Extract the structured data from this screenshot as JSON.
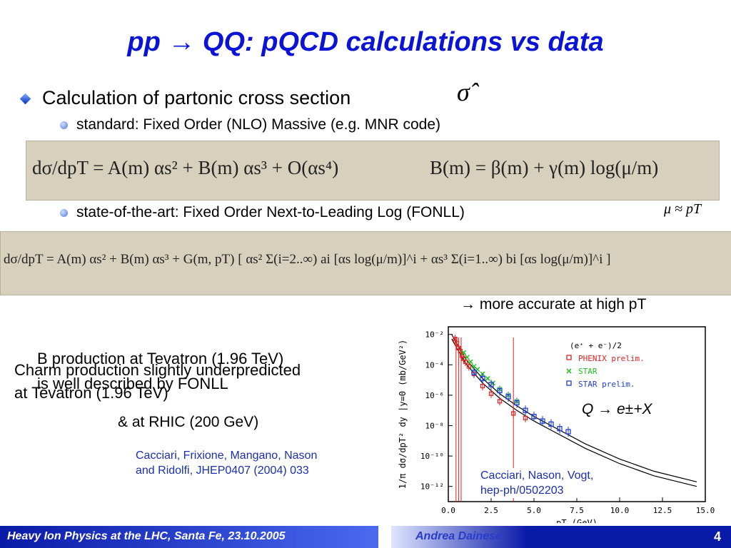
{
  "title": "pp → QQ: pQCD calculations vs data",
  "bullet_main": "Calculation of partonic cross section",
  "sigma_hat": "σ̂",
  "sub1": "standard: Fixed Order (NLO) Massive (e.g. MNR code)",
  "eq1_left": "dσ/dpT = A(m) αs² + B(m) αs³ + O(αs⁴)",
  "eq1_right": "B(m) = β(m) + γ(m) log(μ/m)",
  "mu_note": "μ ≈ pT",
  "sub2": "state-of-the-art: Fixed Order Next-to-Leading Log (FONLL)",
  "eq2": "dσ/dpT = A(m) αs² + B(m) αs³ + G(m, pT) [ αs² Σ(i=2..∞) ai [αs log(μ/m)]^i + αs³ Σ(i=1..∞) bi [αs log(μ/m)]^i ]",
  "more_accurate": "→ more accurate at high pT",
  "overlap_b1": "B production at Tevatron (1.96 TeV)",
  "overlap_b2": "is well described by FONLL",
  "overlap_c1": "Charm production slightly underpredicted",
  "overlap_c2": "at Tevatron (1.96 TeV)",
  "rhic": "&  at RHIC (200 GeV)",
  "ref1_l1": "Cacciari, Frixione, Mangano, Nason",
  "ref1_l2": "and Ridolfi, JHEP0407 (2004) 033",
  "ref2_l1": "Cacciari, Nason, Vogt,",
  "ref2_l2": "hep-ph/0502203",
  "q_decay": "Q → e±+X",
  "footer_left": "Heavy Ion Physics at the LHC, Santa Fe, 23.10.2005",
  "footer_author": "Andrea Dainese",
  "page_number": "4",
  "chart_data": {
    "type": "scatter",
    "xlabel": "pT (GeV)",
    "ylabel": "1/π dσ/dpT² dy |y=0 (mb/GeV²)",
    "xlim": [
      0,
      15
    ],
    "ylim_log10": [
      -13,
      -1.5
    ],
    "xticks": [
      "0.0",
      "2.5",
      "5.0",
      "7.5",
      "10.0",
      "12.5",
      "15.0"
    ],
    "yticks": [
      "10⁻²",
      "10⁻⁴",
      "10⁻⁶",
      "10⁻⁸",
      "10⁻¹⁰",
      "10⁻¹²"
    ],
    "legend_title": "(e⁺ + e⁻)/2",
    "legend_position": "top-right",
    "series": [
      {
        "name": "PHENIX prelim.",
        "color": "#e02020",
        "x": [
          0.4,
          0.5,
          0.6,
          0.7,
          0.8,
          0.9,
          1.0,
          1.2,
          1.5,
          2.0,
          2.5,
          3.0,
          3.8,
          4.5
        ],
        "log10y": [
          -2.3,
          -2.6,
          -2.9,
          -3.1,
          -3.4,
          -3.6,
          -3.8,
          -4.1,
          -4.6,
          -5.4,
          -5.9,
          -6.4,
          -7.2,
          -7.5
        ]
      },
      {
        "name": "STAR",
        "color": "#20c020",
        "x": [
          0.9,
          1.1,
          1.3,
          1.5,
          1.7,
          2.0,
          2.3,
          2.6,
          3.0,
          3.5,
          4.0
        ],
        "log10y": [
          -3.2,
          -3.5,
          -3.8,
          -4.1,
          -4.3,
          -4.6,
          -4.9,
          -5.2,
          -5.6,
          -6.0,
          -6.4
        ]
      },
      {
        "name": "STAR prelim.",
        "color": "#2040d0",
        "x": [
          1.5,
          2.0,
          2.5,
          3.0,
          3.5,
          4.0,
          4.5,
          5.0,
          5.5,
          6.0,
          6.5,
          7.0
        ],
        "log10y": [
          -4.5,
          -4.9,
          -5.3,
          -5.7,
          -6.1,
          -6.5,
          -7.0,
          -7.4,
          -7.7,
          -7.9,
          -8.2,
          -8.4
        ]
      }
    ],
    "theory_band_log10y": {
      "x": [
        0.2,
        1,
        2,
        3,
        4,
        5,
        6,
        8,
        10,
        12,
        14.5
      ],
      "upper": [
        -2.0,
        -3.6,
        -4.9,
        -5.9,
        -6.7,
        -7.4,
        -8.0,
        -9.2,
        -10.2,
        -11.0,
        -11.7
      ],
      "lower": [
        -2.3,
        -3.9,
        -5.2,
        -6.2,
        -7.0,
        -7.7,
        -8.3,
        -9.5,
        -10.5,
        -11.3,
        -12.0
      ]
    }
  }
}
